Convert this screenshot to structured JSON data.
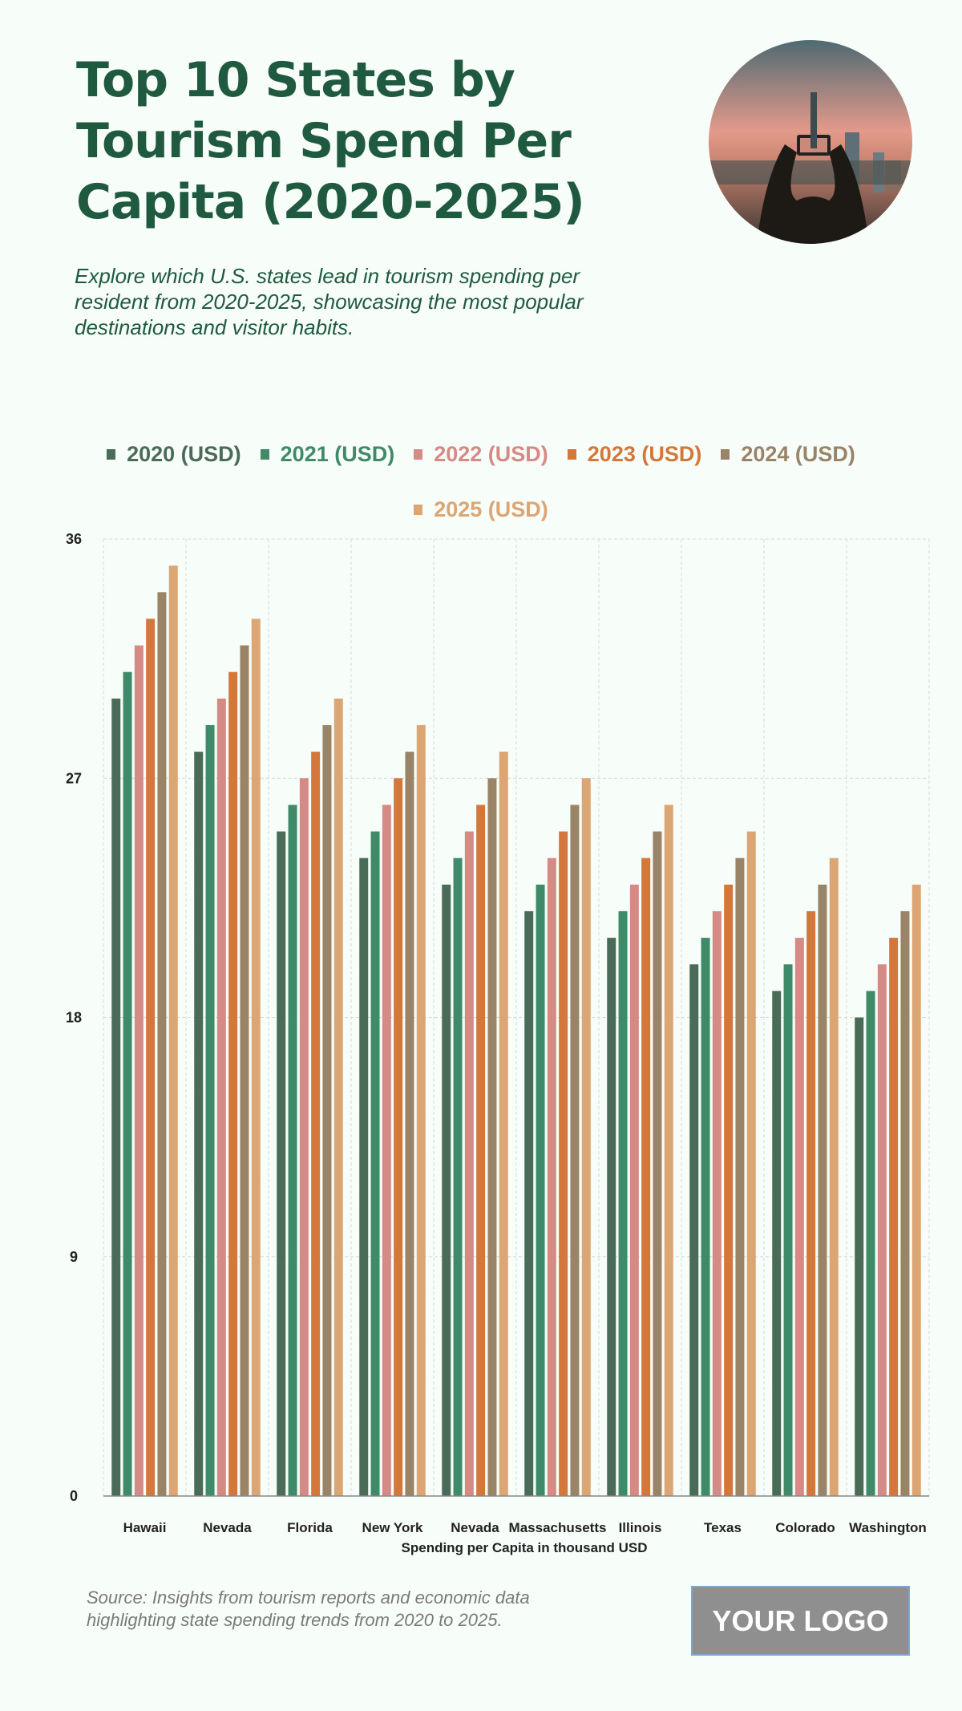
{
  "header": {
    "title": "Top 10 States by Tourism Spend Per Capita (2020-2025)",
    "subtitle": "Explore which U.S. states lead in tourism spending per resident from 2020-2025, showcasing the most popular destinations and visitor habits."
  },
  "footer": {
    "source": "Source: Insights from tourism reports and economic data highlighting state spending trends from 2020 to 2025.",
    "logo": "YOUR LOGO"
  },
  "chart_data": {
    "type": "bar",
    "title": "Top 10 States by Tourism Spend Per Capita (2020-2025)",
    "xlabel": "Spending per Capita in thousand USD",
    "ylabel": "",
    "ylim": [
      0,
      36
    ],
    "yticks": [
      0,
      9,
      18,
      27,
      36
    ],
    "grid": true,
    "legend_position": "top-center",
    "categories": [
      "Hawaii",
      "Nevada",
      "Florida",
      "New York",
      "Nevada",
      "Massachusetts",
      "Illinois",
      "Texas",
      "Colorado",
      "Washington"
    ],
    "series": [
      {
        "name": "2020 (USD)",
        "color": "#4a6b57",
        "values": [
          30,
          28,
          25,
          24,
          23,
          22,
          21,
          20,
          19,
          18
        ]
      },
      {
        "name": "2021 (USD)",
        "color": "#3f8a68",
        "values": [
          31,
          29,
          26,
          25,
          24,
          23,
          22,
          21,
          20,
          19
        ]
      },
      {
        "name": "2022 (USD)",
        "color": "#d68a85",
        "values": [
          32,
          30,
          27,
          26,
          25,
          24,
          23,
          22,
          21,
          20
        ]
      },
      {
        "name": "2023 (USD)",
        "color": "#d4773a",
        "values": [
          33,
          31,
          28,
          27,
          26,
          25,
          24,
          23,
          22,
          21
        ]
      },
      {
        "name": "2024 (USD)",
        "color": "#9a8468",
        "values": [
          34,
          32,
          29,
          28,
          27,
          26,
          25,
          24,
          23,
          22
        ]
      },
      {
        "name": "2025 (USD)",
        "color": "#dba574",
        "values": [
          35,
          33,
          30,
          29,
          28,
          27,
          26,
          25,
          24,
          23
        ]
      }
    ]
  }
}
